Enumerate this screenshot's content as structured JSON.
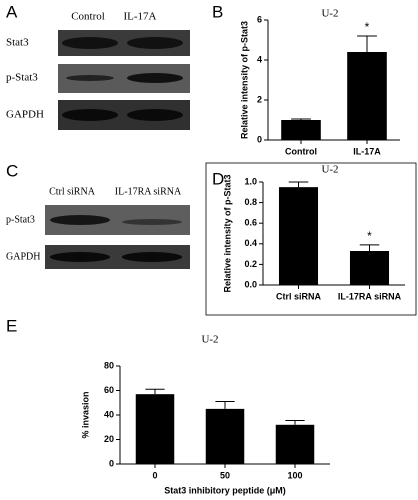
{
  "panels": {
    "A": "A",
    "B": "B",
    "C": "C",
    "D": "D",
    "E": "E"
  },
  "blot_a": {
    "columns": [
      "Control",
      "IL-17A"
    ],
    "rows": [
      "Stat3",
      "p-Stat3",
      "GAPDH"
    ]
  },
  "blot_c": {
    "columns": [
      "Ctrl siRNA",
      "IL-17RA siRNA"
    ],
    "rows": [
      "p-Stat3",
      "GAPDH"
    ]
  },
  "chart_data": [
    {
      "type": "bar",
      "title": "U-2",
      "y_label": "Relative intensity of p-Stat3",
      "categories": [
        "Control",
        "IL-17A"
      ],
      "values": [
        1.0,
        4.4
      ],
      "errors": [
        0.05,
        0.8
      ],
      "color": "#000000",
      "ylim": [
        0,
        6
      ],
      "yticks": [
        0,
        2,
        4,
        6
      ],
      "annotations": [
        {
          "text": "*",
          "x": "IL-17A"
        }
      ]
    },
    {
      "type": "bar",
      "title": "U-2",
      "y_label": "Relative intensity of p-Stat3",
      "categories": [
        "Ctrl siRNA",
        "IL-17RA siRNA"
      ],
      "values": [
        0.95,
        0.33
      ],
      "errors": [
        0.05,
        0.06
      ],
      "color": "#000000",
      "ylim": [
        0,
        1
      ],
      "yticks": [
        {
          "value": 0,
          "label": "0.0"
        },
        0.2,
        0.4,
        0.6,
        0.8,
        {
          "value": 1,
          "label": "1.0"
        }
      ],
      "annotations": [
        {
          "text": "*",
          "x": "IL-17RA siRNA"
        }
      ]
    },
    {
      "type": "bar",
      "title": "U-2",
      "y_label": "% invasion",
      "x_label": "Stat3 inhibitory peptide (μM)",
      "categories": [
        "0",
        "50",
        "100"
      ],
      "values": [
        57,
        45,
        32
      ],
      "errors": [
        4,
        6,
        3.5
      ],
      "color": "#000000",
      "ylim": [
        0,
        80
      ],
      "yticks": [
        0,
        20,
        40,
        60,
        80
      ]
    }
  ]
}
